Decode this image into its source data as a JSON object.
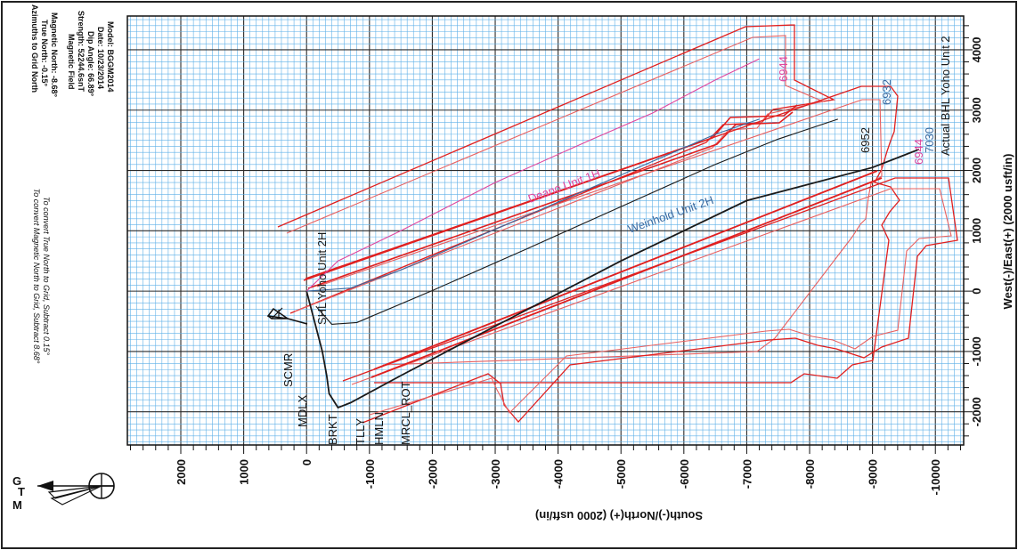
{
  "chart_data": {
    "type": "line",
    "title": "",
    "xlabel": "South(-)/North(+) (2000 usft/in)",
    "ylabel": "West(-)/East(+) (2000 usft/in)",
    "xlim": [
      -10450,
      2850
    ],
    "ylim": [
      -2550,
      4560
    ],
    "x_ticks": [
      2000,
      1000,
      0,
      -1000,
      -2000,
      -3000,
      -4000,
      -5000,
      -6000,
      -7000,
      -8000,
      -9000,
      -10000
    ],
    "x_tick_labels": [
      "2000",
      "1000",
      "0",
      "-1000",
      "-2000",
      "-3000",
      "-4000",
      "-5000",
      "-6000",
      "-7000",
      "-8000",
      "-9000",
      "-10000"
    ],
    "y_ticks": [
      4000,
      3000,
      2000,
      1000,
      0,
      -1000,
      -2000
    ],
    "y_tick_labels": [
      "4000",
      "3000",
      "2000",
      "1000",
      "0",
      "-1000",
      "-2000"
    ],
    "grid": true,
    "series": [
      {
        "name": "SHL Yoho Unit 2H",
        "color": "#1a1a1a",
        "x": [
          0,
          -100,
          -250,
          -320,
          -360,
          -500,
          -700,
          -1500,
          -3000,
          -5000,
          -7000,
          -9000,
          -9740
        ],
        "y": [
          0,
          -400,
          -1000,
          -1400,
          -1700,
          -1930,
          -1850,
          -1400,
          -580,
          500,
          1500,
          2050,
          2350
        ]
      },
      {
        "name": "Weinhold Unit 2H",
        "color": "#3a6aa0",
        "x": [
          0,
          -700,
          -1500,
          -2500,
          -3500,
          -4500,
          -5500,
          -6500,
          -7200
        ],
        "y": [
          0,
          50,
          350,
          800,
          1250,
          1700,
          2150,
          2600,
          2850
        ]
      },
      {
        "name": "Deano Unit 1H",
        "color": "#e0479e",
        "x": [
          0,
          -500,
          -1500,
          -3000,
          -4500,
          -5500,
          -6500,
          -7200
        ],
        "y": [
          0,
          500,
          1000,
          1800,
          2500,
          2950,
          3500,
          3850
        ]
      },
      {
        "name": "",
        "color": "#1a1a1a",
        "x": [
          -150,
          -400,
          -800,
          -2000,
          -3500,
          -5000,
          -6500,
          -7500,
          -8450
        ],
        "y": [
          -250,
          -550,
          -520,
          10,
          700,
          1400,
          2100,
          2520,
          2850
        ]
      }
    ],
    "annotations": [
      "SCMR",
      "MDLX",
      "BRKT",
      "TLLY",
      "HMLN",
      "MRCL_ROT",
      "6944",
      "6932",
      "6952",
      "6944",
      "7030",
      "Actual BHL Yoho Unit 2"
    ],
    "notes": {
      "convert_mag": "To convert Magnetic North to Grid, Subtract 8.68°",
      "convert_true": "To convert True North to Grid, Subtract 0.15°",
      "az_title": "Azimuths to Grid North",
      "true_north": "True North: -0.15°",
      "mag_north": "Magnetic North: -8.68°",
      "mf_title": "Magnetic Field",
      "strength": "Strength: 52244.6snT",
      "dip": "Dip Angle: 66.89°",
      "date": "Date: 10/23/2014",
      "model": "Model: BGGM2014"
    },
    "north_arrow": {
      "g": "G",
      "t": "T",
      "m": "M"
    }
  }
}
